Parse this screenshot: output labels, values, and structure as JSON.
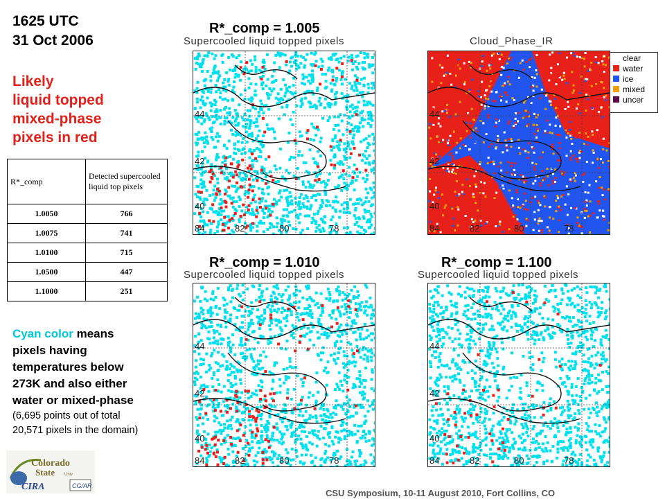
{
  "header": {
    "time": "1625 UTC",
    "date": "31 Oct 2006",
    "red_lines": [
      "Likely",
      "liquid topped",
      "mixed-phase",
      "pixels in red"
    ]
  },
  "table": {
    "header": [
      "R*_comp",
      "Detected supercooled liquid top pixels"
    ],
    "rows": [
      [
        "1.0050",
        "766"
      ],
      [
        "1.0075",
        "741"
      ],
      [
        "1.0100",
        "715"
      ],
      [
        "1.0500",
        "447"
      ],
      [
        "1.1000",
        "251"
      ]
    ]
  },
  "description": {
    "cyan_word": "Cyan color",
    "rest_lines": [
      " means",
      "pixels having",
      "temperatures below",
      "273K and also either",
      "water or mixed-phase"
    ],
    "small_lines": [
      "(6,695 points out of total",
      "20,571 pixels in the domain)"
    ]
  },
  "panels": {
    "p1": {
      "label": "R*_comp = 1.005",
      "subtitle": "Supercooled liquid topped pixels"
    },
    "p2": {
      "label": "",
      "subtitle": "Cloud_Phase_IR"
    },
    "p3": {
      "label": "R*_comp = 1.010",
      "subtitle": "Supercooled liquid topped pixels"
    },
    "p4": {
      "label": "R*_comp = 1.100",
      "subtitle": "Supercooled liquid topped pixels"
    }
  },
  "map_ticks": {
    "lat": [
      "44",
      "42",
      "40"
    ],
    "lon": [
      "84",
      "82",
      "80",
      "78"
    ]
  },
  "legend": {
    "items": [
      {
        "label": "clear",
        "color": "#ffffff"
      },
      {
        "label": "water",
        "color": "#e8201a"
      },
      {
        "label": "ice",
        "color": "#2255ee"
      },
      {
        "label": "mixed",
        "color": "#f0a000"
      },
      {
        "label": "uncer",
        "color": "#5a0a4a"
      }
    ]
  },
  "logo": {
    "text": "Colorado State University",
    "cira": "CIRA",
    "cg": "CG/AR"
  },
  "footer": "CSU Symposium, 10-11 August 2010, Fort Collins, CO",
  "colors": {
    "cyan": "#00e0ee",
    "red": "#e8201a",
    "blue": "#2255ee",
    "orange": "#f0a000"
  }
}
